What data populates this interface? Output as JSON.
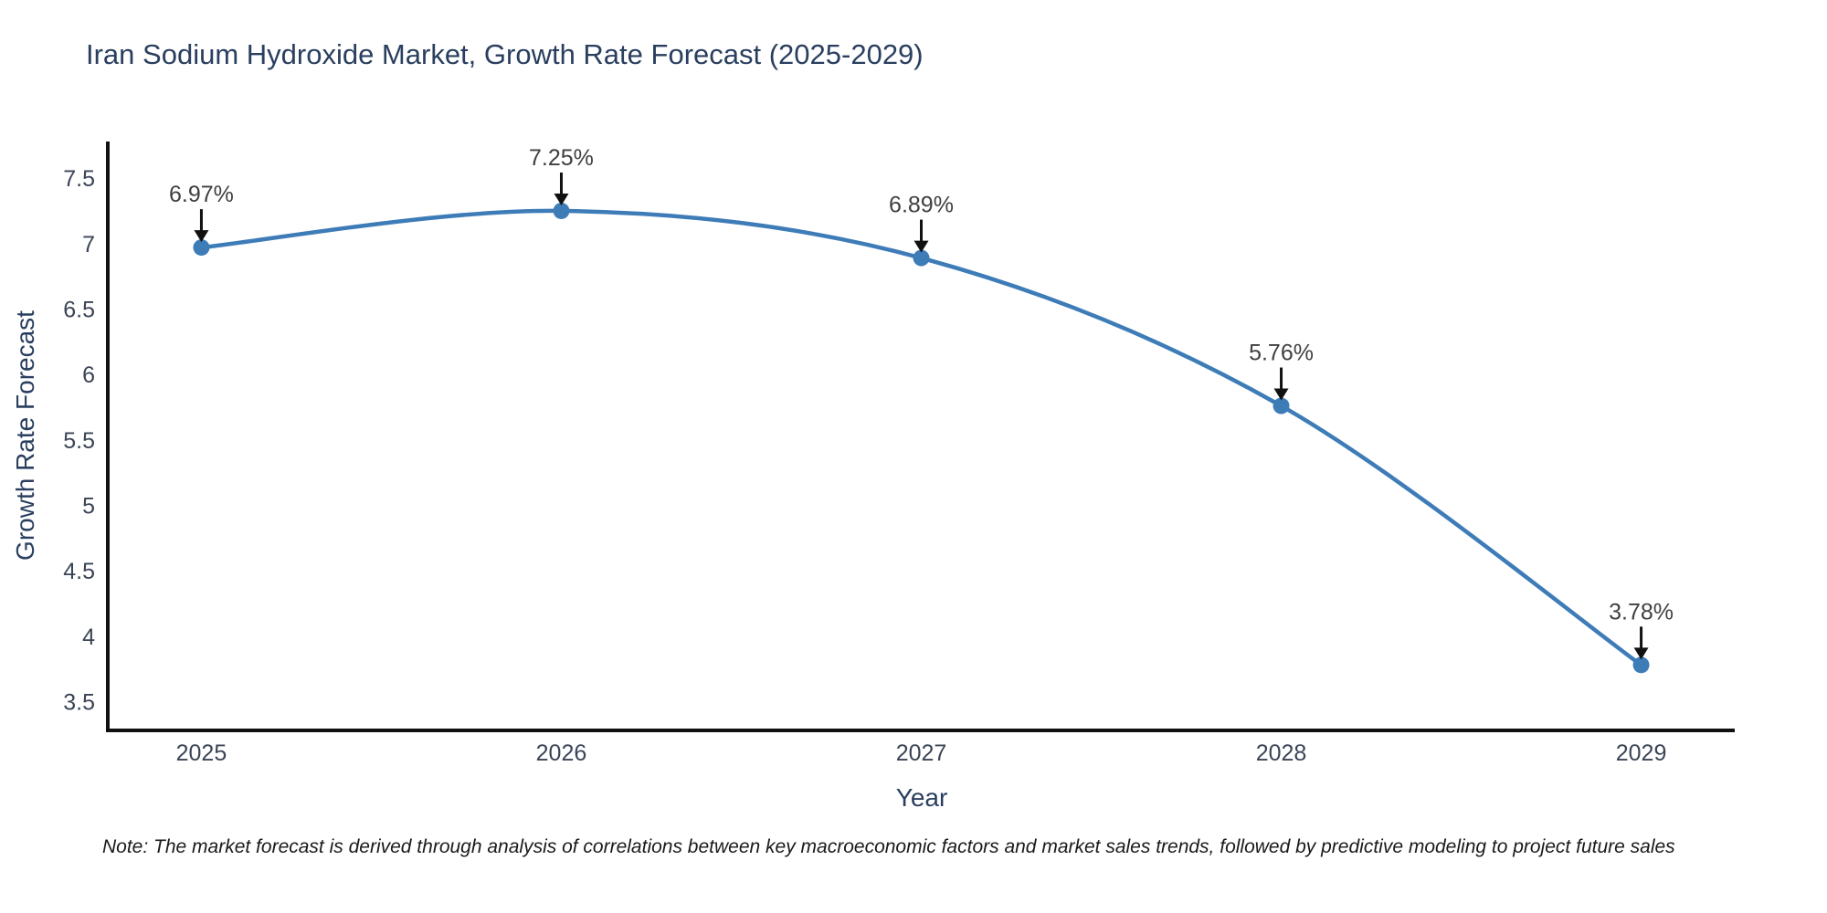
{
  "page": {
    "note": "Note: The market forecast is derived through analysis of correlations between key macroeconomic factors and market sales trends, followed by predictive modeling to project future sales"
  },
  "chart_data": {
    "type": "line",
    "title": "Iran Sodium Hydroxide Market, Growth Rate Forecast (2025-2029)",
    "xlabel": "Year",
    "ylabel": "Growth Rate Forecast",
    "x": [
      2025,
      2026,
      2027,
      2028,
      2029
    ],
    "series": [
      {
        "name": "Growth Rate Forecast",
        "values": [
          6.97,
          7.25,
          6.89,
          5.76,
          3.78
        ]
      }
    ],
    "point_labels": [
      "6.97%",
      "7.25%",
      "6.89%",
      "5.76%",
      "3.78%"
    ],
    "xlim": [
      2024.74,
      2029.26
    ],
    "ylim": [
      3.28,
      7.78
    ],
    "yticks": [
      3.5,
      4,
      4.5,
      5,
      5.5,
      6,
      6.5,
      7,
      7.5
    ],
    "grid": false,
    "legend_position": "none",
    "line_color": "#3e7cb8",
    "marker_color": "#3e7cb8",
    "arrow_color": "#111111",
    "annotation_color": "#404040",
    "axis_color": "#111111",
    "title_color": "#2a3f5f"
  }
}
